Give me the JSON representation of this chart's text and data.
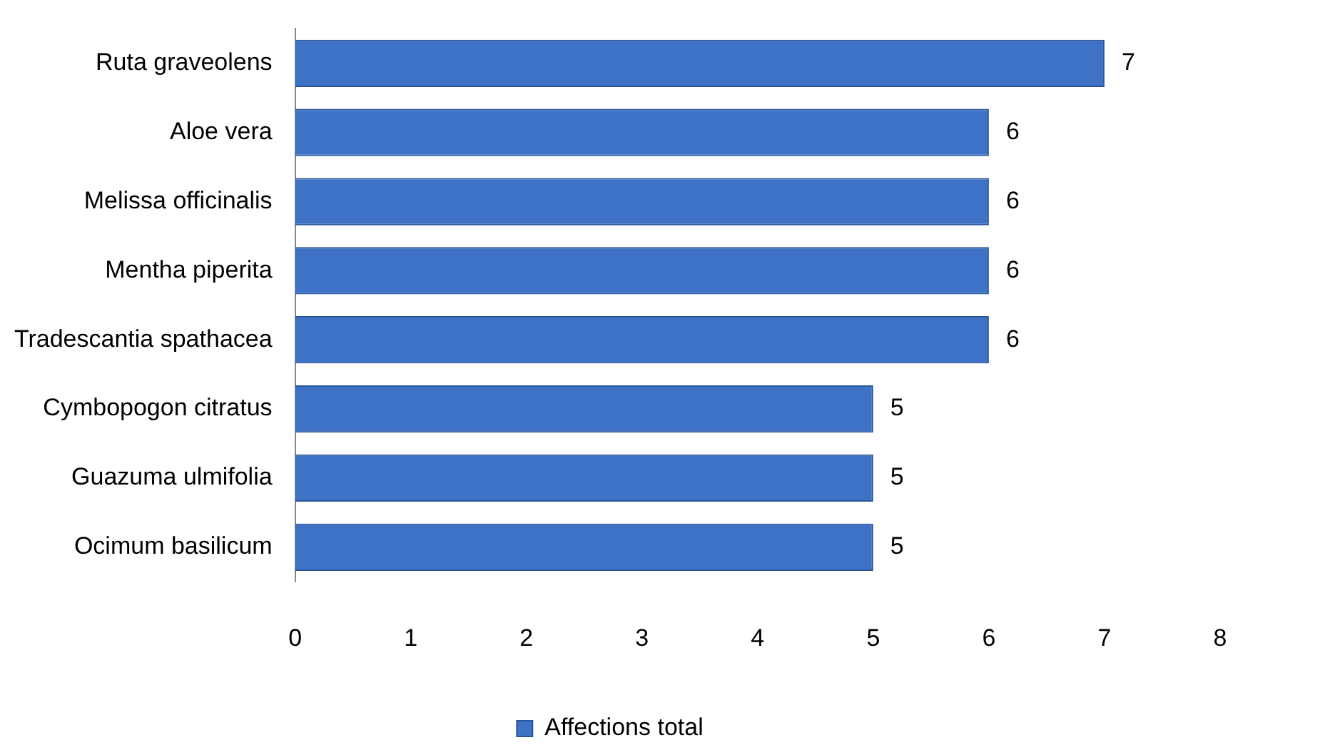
{
  "chart_data": {
    "type": "bar",
    "orientation": "horizontal",
    "categories": [
      "Ruta graveolens",
      "Aloe vera",
      "Melissa officinalis",
      "Mentha piperita",
      "Tradescantia spathacea",
      "Cymbopogon citratus",
      "Guazuma ulmifolia",
      "Ocimum basilicum"
    ],
    "series": [
      {
        "name": "Affections total",
        "color": "#3d72c6",
        "values": [
          7,
          6,
          6,
          6,
          6,
          5,
          5,
          5
        ]
      }
    ],
    "xlim": [
      0,
      8
    ],
    "xticks": [
      0,
      1,
      2,
      3,
      4,
      5,
      6,
      7,
      8
    ],
    "grid": false,
    "legend": "bottom",
    "data_labels": true
  }
}
